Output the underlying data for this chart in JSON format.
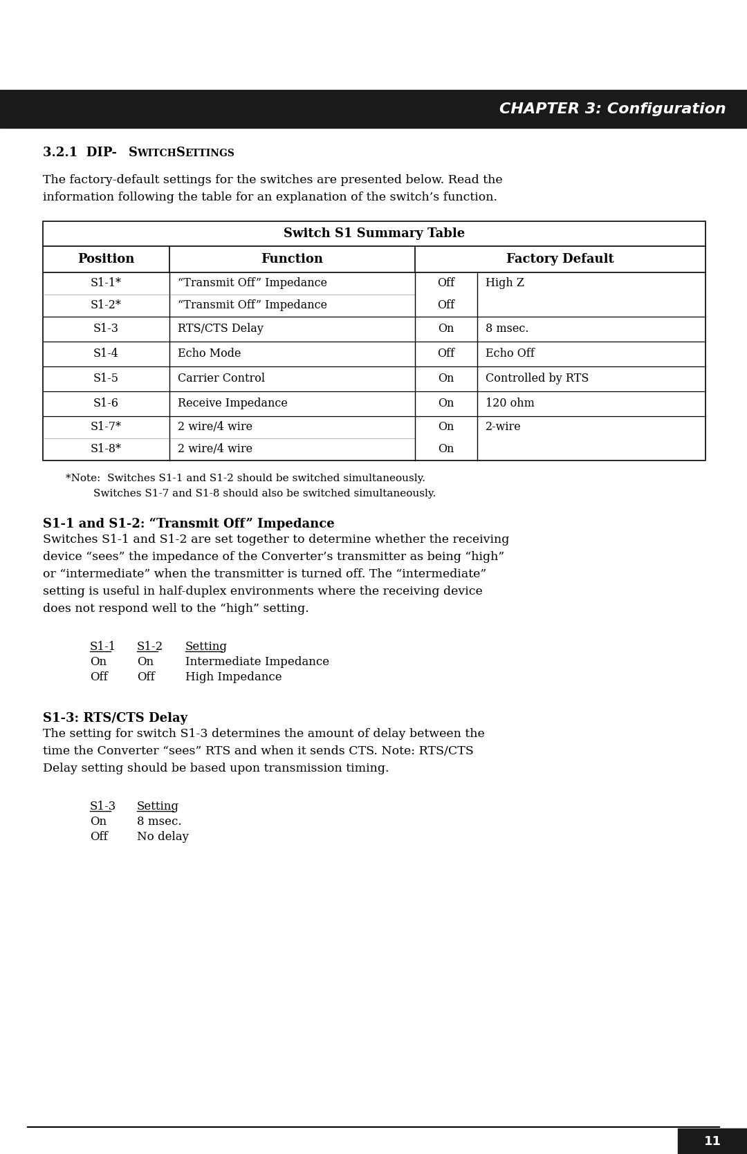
{
  "page_bg": "#ffffff",
  "header_bg": "#1a1a1a",
  "header_text": "CHAPTER 3: Configuration",
  "header_text_color": "#ffffff",
  "intro_text_line1": "The factory-default settings for the switches are presented below. Read the",
  "intro_text_line2": "information following the table for an explanation of the switch’s function.",
  "table_title": "Switch S1 Summary Table",
  "table_rows": [
    [
      "S1-1*",
      "“Transmit Off” Impedance",
      "Off",
      "High Z"
    ],
    [
      "S1-2*",
      "“Transmit Off” Impedance",
      "Off",
      ""
    ],
    [
      "S1-3",
      "RTS/CTS Delay",
      "On",
      "8 msec."
    ],
    [
      "S1-4",
      "Echo Mode",
      "Off",
      "Echo Off"
    ],
    [
      "S1-5",
      "Carrier Control",
      "On",
      "Controlled by RTS"
    ],
    [
      "S1-6",
      "Receive Impedance",
      "On",
      "120 ohm"
    ],
    [
      "S1-7*",
      "2 wire/4 wire",
      "On",
      "2-wire"
    ],
    [
      "S1-8*",
      "2 wire/4 wire",
      "On",
      ""
    ]
  ],
  "note_text1": "*Note:  Switches S1-1 and S1-2 should be switched simultaneously.",
  "note_text2": "Switches S1-7 and S1-8 should also be switched simultaneously.",
  "section2_title": "S1-1 and S1-2: “Transmit Off” Impedance",
  "section2_body_lines": [
    "Switches S1-1 and S1-2 are set together to determine whether the receiving",
    "device “sees” the impedance of the Converter’s transmitter as being “high”",
    "or “intermediate” when the transmitter is turned off. The “intermediate”",
    "setting is useful in half-duplex environments where the receiving device",
    "does not respond well to the “high” setting."
  ],
  "mini1_headers": [
    "S1-1",
    "S1-2",
    "Setting"
  ],
  "mini1_rows": [
    [
      "On",
      "On",
      "Intermediate Impedance"
    ],
    [
      "Off",
      "Off",
      "High Impedance"
    ]
  ],
  "section3_title": "S1-3: RTS/CTS Delay",
  "section3_body_lines": [
    "The setting for switch S1-3 determines the amount of delay between the",
    "time the Converter “sees” RTS and when it sends CTS. Note: RTS/CTS",
    "Delay setting should be based upon transmission timing."
  ],
  "mini2_headers": [
    "S1-3",
    "Setting"
  ],
  "mini2_rows": [
    [
      "On",
      "8 msec."
    ],
    [
      "Off",
      "No delay"
    ]
  ],
  "page_number": "11"
}
